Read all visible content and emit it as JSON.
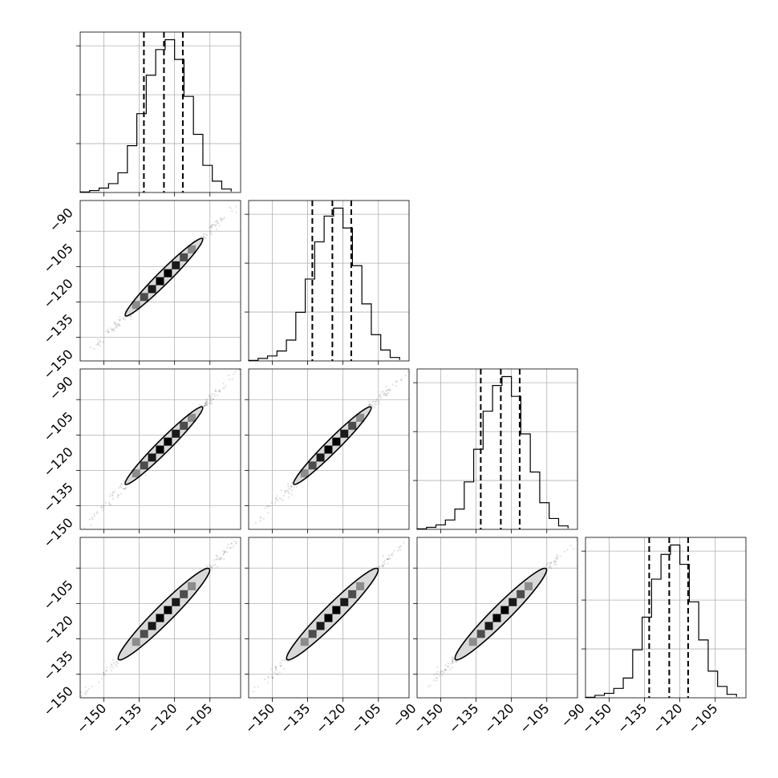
{
  "chart_data": {
    "type": "corner",
    "n_params": 4,
    "grid": true,
    "colors": {
      "histogram": "#000000",
      "quantile_lines": "#000000",
      "grid": "#b0b0b0",
      "scatter": "#000000"
    },
    "quantiles": [
      0.16,
      0.5,
      0.84
    ],
    "x_ticks": [
      -150,
      -135,
      -120,
      -105,
      -90
    ],
    "y_ticks": [
      -150,
      -135,
      -120,
      -105,
      -90
    ],
    "x_tick_labels_bottom": [
      [
        "−150",
        "−135",
        "−120",
        "−105"
      ],
      [
        "−150",
        "−135",
        "−120",
        "−105",
        "−90"
      ],
      [
        "−150",
        "−135",
        "−120",
        "−105",
        "−90"
      ],
      [
        "−150",
        "−135",
        "−120",
        "−105"
      ]
    ],
    "y_tick_labels_left": [
      [],
      [
        "−90",
        "−105",
        "−120",
        "−135",
        "−150"
      ],
      [
        "−90",
        "−105",
        "−120",
        "−135",
        "−150"
      ],
      [
        "−105",
        "−120",
        "−135",
        "−150"
      ]
    ],
    "axis_ranges": [
      [
        -160,
        -92
      ],
      [
        -160,
        -92
      ],
      [
        -160,
        -92
      ],
      [
        -160,
        -92
      ]
    ],
    "marginals": [
      {
        "param_index": 0,
        "bin_edges": [
          -160,
          -156,
          -152,
          -148,
          -144,
          -140,
          -136,
          -132,
          -128,
          -124,
          -120,
          -116,
          -112,
          -108,
          -104,
          -100,
          -96
        ],
        "counts": [
          1,
          4,
          9,
          18,
          40,
          95,
          160,
          238,
          290,
          310,
          270,
          195,
          118,
          55,
          23,
          7,
          2
        ],
        "quantile_values": [
          -133,
          -124.5,
          -116.5
        ]
      },
      {
        "param_index": 1,
        "bin_edges": [
          -160,
          -156,
          -152,
          -148,
          -144,
          -140,
          -136,
          -132,
          -128,
          -124,
          -120,
          -116,
          -112,
          -108,
          -104,
          -100,
          -96
        ],
        "counts": [
          1,
          5,
          10,
          20,
          42,
          98,
          165,
          240,
          292,
          308,
          268,
          192,
          115,
          53,
          22,
          7,
          2
        ],
        "quantile_values": [
          -133,
          -124.5,
          -116.5
        ]
      },
      {
        "param_index": 2,
        "bin_edges": [
          -160,
          -156,
          -152,
          -148,
          -144,
          -140,
          -136,
          -132,
          -128,
          -124,
          -120,
          -116,
          -112,
          -108,
          -104,
          -100,
          -96
        ],
        "counts": [
          1,
          4,
          9,
          19,
          41,
          96,
          162,
          239,
          291,
          309,
          269,
          193,
          116,
          54,
          22,
          7,
          2
        ],
        "quantile_values": [
          -133,
          -124.5,
          -116.5
        ]
      },
      {
        "param_index": 3,
        "bin_edges": [
          -160,
          -156,
          -152,
          -148,
          -144,
          -140,
          -136,
          -132,
          -128,
          -124,
          -120,
          -116,
          -112,
          -108,
          -104,
          -100,
          -96
        ],
        "counts": [
          1,
          5,
          9,
          19,
          40,
          97,
          163,
          240,
          290,
          309,
          270,
          194,
          117,
          54,
          23,
          7,
          2
        ],
        "quantile_values": [
          -133,
          -124.5,
          -116.5
        ]
      }
    ],
    "joint_2d": {
      "correlation": 0.995,
      "mean": -124.5,
      "sd": 8.5,
      "cell_gray_levels": [
        0.55,
        0.3,
        0.1,
        0.0,
        0.0,
        0.1,
        0.3,
        0.55
      ],
      "pairs": [
        [
          1,
          0
        ],
        [
          2,
          0
        ],
        [
          2,
          1
        ],
        [
          3,
          0
        ],
        [
          3,
          1
        ],
        [
          3,
          2
        ]
      ]
    }
  }
}
